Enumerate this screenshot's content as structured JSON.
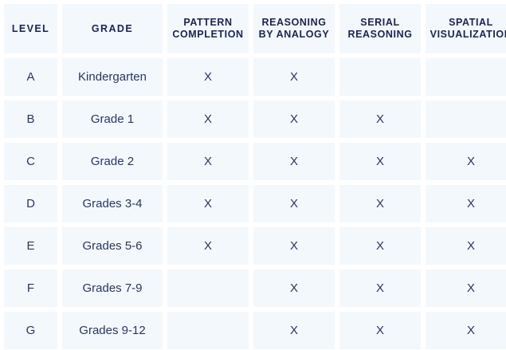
{
  "headers": {
    "level": "LEVEL",
    "grade": "GRADE",
    "pattern_completion_line1": "PATTERN",
    "pattern_completion_line2": "COMPLETION",
    "reasoning_by_analogy_line1": "REASONING",
    "reasoning_by_analogy_line2": "BY ANALOGY",
    "serial_reasoning_line1": "SERIAL",
    "serial_reasoning_line2": "REASONING",
    "spatial_visualization_line1": "SPATIAL",
    "spatial_visualization_line2": "VISUALIZATION"
  },
  "rows": [
    {
      "level": "A",
      "grade": "Kindergarten",
      "pattern": "X",
      "analogy": "X",
      "serial": "",
      "spatial": ""
    },
    {
      "level": "B",
      "grade": "Grade 1",
      "pattern": "X",
      "analogy": "X",
      "serial": "X",
      "spatial": ""
    },
    {
      "level": "C",
      "grade": "Grade 2",
      "pattern": "X",
      "analogy": "X",
      "serial": "X",
      "spatial": "X"
    },
    {
      "level": "D",
      "grade": "Grades 3-4",
      "pattern": "X",
      "analogy": "X",
      "serial": "X",
      "spatial": "X"
    },
    {
      "level": "E",
      "grade": "Grades 5-6",
      "pattern": "X",
      "analogy": "X",
      "serial": "X",
      "spatial": "X"
    },
    {
      "level": "F",
      "grade": "Grades 7-9",
      "pattern": "",
      "analogy": "X",
      "serial": "X",
      "spatial": "X"
    },
    {
      "level": "G",
      "grade": "Grades 9-12",
      "pattern": "",
      "analogy": "X",
      "serial": "X",
      "spatial": "X"
    }
  ]
}
